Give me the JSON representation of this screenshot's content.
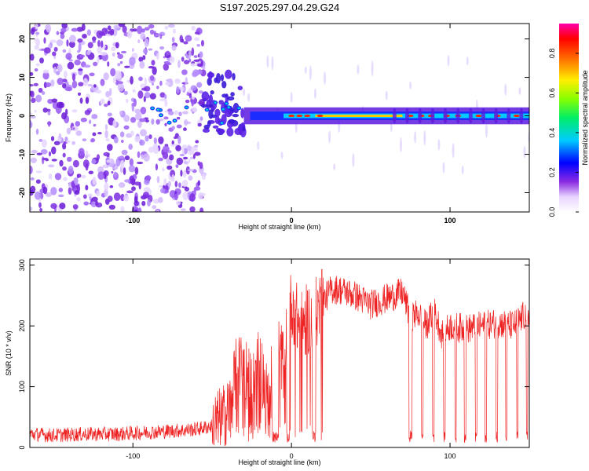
{
  "title": "S197.2025.297.04.29.G24",
  "colors": {
    "snr_line": "#ee2222",
    "axis": "#000000",
    "background": "#ffffff"
  },
  "chart_data": [
    {
      "type": "heatmap",
      "title": "S197.2025.297.04.29.G24",
      "xlabel": "Height of straight line (km)",
      "ylabel": "Frequency (Hz)",
      "xlim": [
        -165,
        150
      ],
      "ylim": [
        -25,
        24
      ],
      "xticks": [
        -100,
        0,
        100
      ],
      "yticks": [
        -20,
        -10,
        0,
        10,
        20
      ],
      "colorbar": {
        "label": "Normalized spectral amplitude",
        "range": [
          0,
          0.95
        ],
        "ticks": [
          0.0,
          0.2,
          0.4,
          0.6,
          0.8
        ]
      },
      "description_of_structure": {
        "noise_region_km": [
          -165,
          -55
        ],
        "transition_region_km": [
          -55,
          -30
        ],
        "tone_region_km": [
          -30,
          150
        ],
        "tone_frequency_hz": 0
      }
    },
    {
      "type": "line",
      "xlabel": "Height of straight line (km)",
      "ylabel": "SNR (10 * v/v)",
      "xlim": [
        -165,
        150
      ],
      "ylim": [
        0,
        310
      ],
      "xticks": [
        -100,
        0,
        100
      ],
      "yticks": [
        0,
        100,
        200,
        300
      ],
      "series": [
        {
          "name": "SNR",
          "x": [
            -165,
            -150,
            -130,
            -110,
            -90,
            -70,
            -60,
            -50,
            -45,
            -40,
            -35,
            -30,
            -25,
            -20,
            -15,
            -10,
            -5,
            0,
            5,
            10,
            15,
            20,
            25,
            30,
            40,
            50,
            60,
            70,
            75,
            80,
            85,
            90,
            95,
            100,
            110,
            120,
            130,
            140,
            150
          ],
          "y": [
            22,
            20,
            22,
            22,
            25,
            28,
            30,
            35,
            40,
            55,
            120,
            140,
            90,
            150,
            70,
            160,
            140,
            240,
            200,
            210,
            220,
            240,
            260,
            260,
            250,
            235,
            245,
            255,
            215,
            220,
            200,
            225,
            185,
            200,
            195,
            200,
            205,
            200,
            225
          ]
        }
      ]
    }
  ]
}
